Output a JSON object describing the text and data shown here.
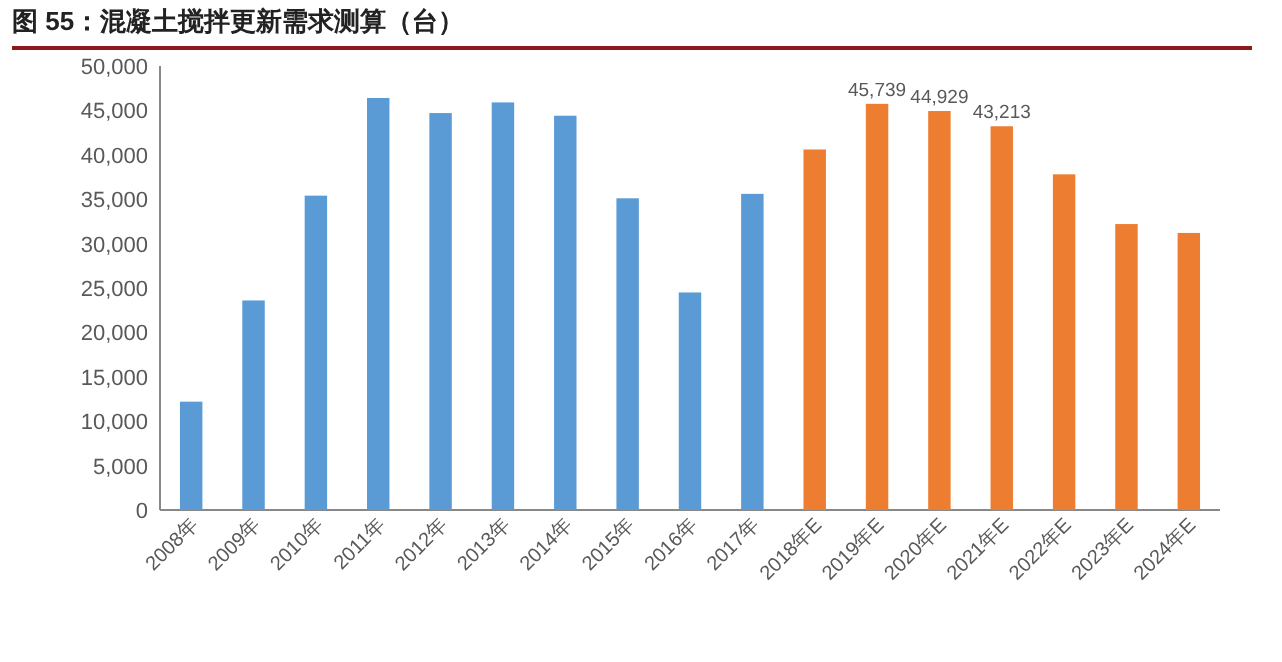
{
  "chart_data": {
    "type": "bar",
    "title": "图 55：混凝土搅拌更新需求测算（台）",
    "categories": [
      "2008年",
      "2009年",
      "2010年",
      "2011年",
      "2012年",
      "2013年",
      "2014年",
      "2015年",
      "2016年",
      "2017年",
      "2018年E",
      "2019年E",
      "2020年E",
      "2021年E",
      "2022年E",
      "2023年E",
      "2024年E"
    ],
    "values": [
      12200,
      23600,
      35400,
      46400,
      44700,
      45900,
      44400,
      35100,
      24500,
      35600,
      40600,
      45739,
      44929,
      43213,
      37800,
      32200,
      31200
    ],
    "colors": [
      "#5b9bd5",
      "#5b9bd5",
      "#5b9bd5",
      "#5b9bd5",
      "#5b9bd5",
      "#5b9bd5",
      "#5b9bd5",
      "#5b9bd5",
      "#5b9bd5",
      "#5b9bd5",
      "#ed7d31",
      "#ed7d31",
      "#ed7d31",
      "#ed7d31",
      "#ed7d31",
      "#ed7d31",
      "#ed7d31"
    ],
    "value_labels": [
      null,
      null,
      null,
      null,
      null,
      null,
      null,
      null,
      null,
      null,
      null,
      "45,739",
      "44,929",
      "43,213",
      null,
      null,
      null
    ],
    "ylim": [
      0,
      50000
    ],
    "yticks": [
      {
        "value": 0,
        "label": "0"
      },
      {
        "value": 5000,
        "label": "5,000"
      },
      {
        "value": 10000,
        "label": "10,000"
      },
      {
        "value": 15000,
        "label": "15,000"
      },
      {
        "value": 20000,
        "label": "20,000"
      },
      {
        "value": 25000,
        "label": "25,000"
      },
      {
        "value": 30000,
        "label": "30,000"
      },
      {
        "value": 35000,
        "label": "35,000"
      },
      {
        "value": 40000,
        "label": "40,000"
      },
      {
        "value": 45000,
        "label": "45,000"
      },
      {
        "value": 50000,
        "label": "50,000"
      }
    ],
    "grid": false
  }
}
